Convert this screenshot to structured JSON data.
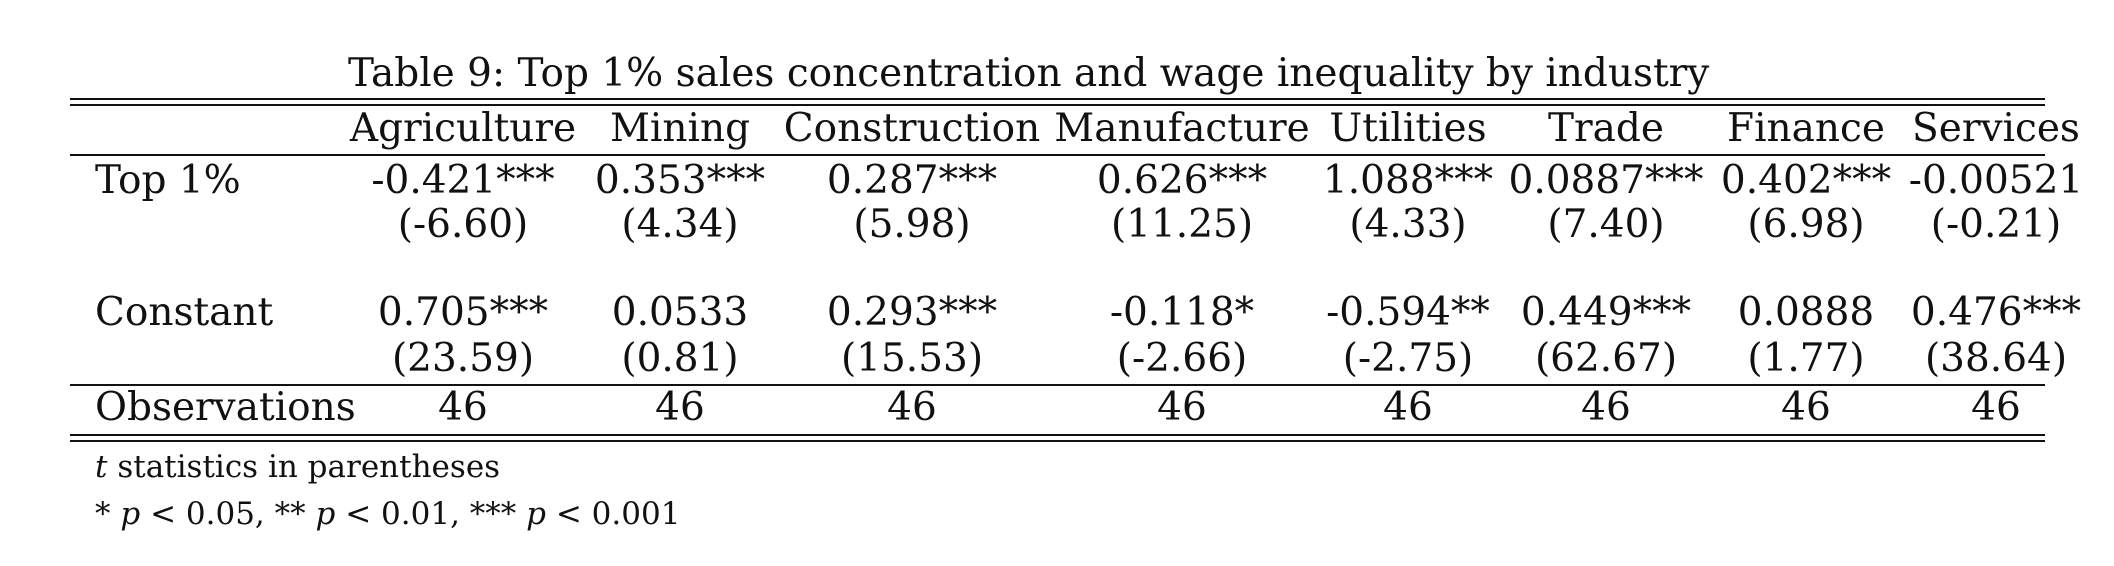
{
  "caption": "Table 9: Top 1% sales concentration and wage inequality by industry",
  "columns": [
    "Agriculture",
    "Mining",
    "Construction",
    "Manufacture",
    "Utilities",
    "Trade",
    "Finance",
    "Services"
  ],
  "rows": {
    "top1": {
      "label": "Top 1%",
      "coef": [
        "-0.421***",
        "0.353***",
        "0.287***",
        "0.626***",
        "1.088***",
        "0.0887***",
        "0.402***",
        "-0.00521"
      ],
      "tstat": [
        "(-6.60)",
        "(4.34)",
        "(5.98)",
        "(11.25)",
        "(4.33)",
        "(7.40)",
        "(6.98)",
        "(-0.21)"
      ]
    },
    "constant": {
      "label": "Constant",
      "coef": [
        "0.705***",
        "0.0533",
        "0.293***",
        "-0.118*",
        "-0.594**",
        "0.449***",
        "0.0888",
        "0.476***"
      ],
      "tstat": [
        "(23.59)",
        "(0.81)",
        "(15.53)",
        "(-2.66)",
        "(-2.75)",
        "(62.67)",
        "(1.77)",
        "(38.64)"
      ]
    },
    "observations": {
      "label": "Observations",
      "values": [
        "46",
        "46",
        "46",
        "46",
        "46",
        "46",
        "46",
        "46"
      ]
    }
  },
  "notes": {
    "t_symbol": "t",
    "t_text": " statistics in parentheses",
    "p1_stars": "* ",
    "p1_sym": "p",
    "p1_val": " < 0.05, ",
    "p2_stars": "** ",
    "p2_sym": "p",
    "p2_val": " < 0.01, ",
    "p3_stars": "*** ",
    "p3_sym": "p",
    "p3_val": " < 0.001"
  }
}
